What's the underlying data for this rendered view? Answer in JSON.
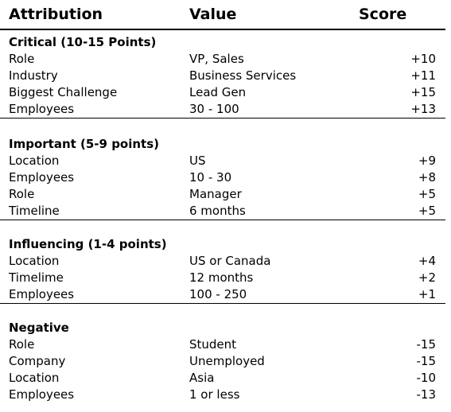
{
  "header": {
    "attribution": "Attribution",
    "value": "Value",
    "score": "Score"
  },
  "sections": [
    {
      "title": "Critical (10-15 Points)",
      "rows": [
        {
          "attribution": "Role",
          "value": "VP, Sales",
          "score": "+10"
        },
        {
          "attribution": "Industry",
          "value": "Business Services",
          "score": "+11"
        },
        {
          "attribution": "Biggest Challenge",
          "value": "Lead Gen",
          "score": "+15"
        },
        {
          "attribution": "Employees",
          "value": "30 - 100",
          "score": "+13"
        }
      ]
    },
    {
      "title": "Important (5-9 points)",
      "rows": [
        {
          "attribution": "Location",
          "value": "US",
          "score": "+9"
        },
        {
          "attribution": "Employees",
          "value": "10 - 30",
          "score": "+8"
        },
        {
          "attribution": "Role",
          "value": "Manager",
          "score": "+5"
        },
        {
          "attribution": "Timeline",
          "value": "6 months",
          "score": "+5"
        }
      ]
    },
    {
      "title": "Influencing (1-4 points)",
      "rows": [
        {
          "attribution": "Location",
          "value": "US or Canada",
          "score": "+4"
        },
        {
          "attribution": "Timelime",
          "value": "12 months",
          "score": "+2"
        },
        {
          "attribution": "Employees",
          "value": "100 - 250",
          "score": "+1"
        }
      ]
    },
    {
      "title": "Negative",
      "rows": [
        {
          "attribution": "Role",
          "value": "Student",
          "score": "-15"
        },
        {
          "attribution": "Company",
          "value": "Unemployed",
          "score": "-15"
        },
        {
          "attribution": "Location",
          "value": "Asia",
          "score": "-10"
        },
        {
          "attribution": "Employees",
          "value": "1 or less",
          "score": "-13"
        }
      ]
    }
  ]
}
